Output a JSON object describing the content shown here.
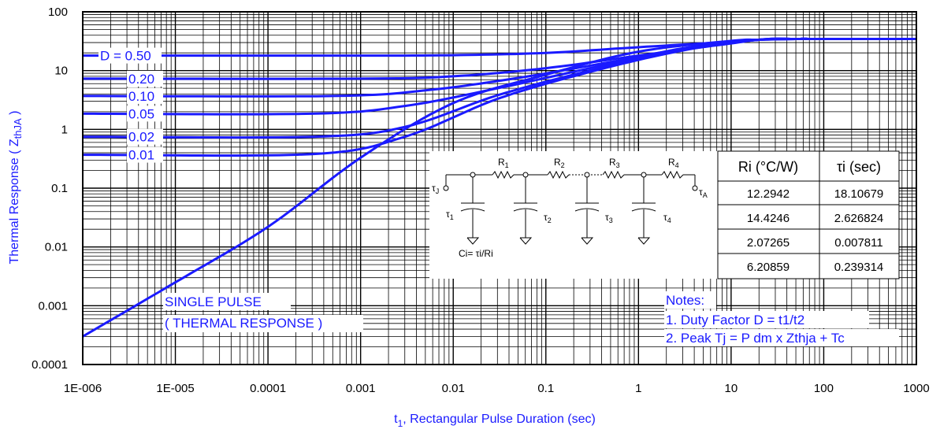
{
  "chart_data": {
    "type": "line",
    "xlabel_prefix": "t",
    "xlabel_sub": "1",
    "xlabel": ", Rectangular Pulse Duration (sec)",
    "ylabel": "Thermal Response ( Z",
    "ylabel_sub": "thJA",
    "ylabel_suffix": " )",
    "x_scale": "log",
    "y_scale": "log",
    "xlim": [
      1e-06,
      1000
    ],
    "ylim": [
      0.0001,
      100
    ],
    "x_ticks": [
      "1E-006",
      "1E-005",
      "0.0001",
      "0.001",
      "0.01",
      "0.1",
      "1",
      "10",
      "100",
      "1000"
    ],
    "y_ticks": [
      "100",
      "10",
      "1",
      "0.1",
      "0.01",
      "0.001",
      "0.0001"
    ],
    "grid": true,
    "line_color": "#1a1aff",
    "series": [
      {
        "name": "D = 0.50",
        "label": "D = 0.50",
        "x": [
          1e-06,
          0.001,
          0.01,
          0.1,
          1,
          10,
          20,
          50,
          100,
          1000
        ],
        "y": [
          18.0,
          18.0,
          18.3,
          20.0,
          25.0,
          31.0,
          33.5,
          34.5,
          34.5,
          34.5
        ]
      },
      {
        "name": "D = 0.20",
        "label": "0.20",
        "x": [
          1e-06,
          0.001,
          0.01,
          0.1,
          1,
          10,
          20,
          50,
          100,
          1000
        ],
        "y": [
          7.3,
          7.3,
          8.0,
          11.0,
          18.0,
          29.0,
          33.5,
          34.5,
          34.5,
          34.5
        ]
      },
      {
        "name": "D = 0.10",
        "label": "0.10",
        "x": [
          1e-06,
          0.0005,
          0.005,
          0.05,
          0.5,
          5,
          20,
          50,
          100,
          1000
        ],
        "y": [
          3.7,
          3.7,
          4.6,
          7.5,
          14.0,
          27.0,
          33.5,
          34.5,
          34.5,
          34.5
        ]
      },
      {
        "name": "D = 0.05",
        "label": "0.05",
        "x": [
          1e-06,
          0.0003,
          0.003,
          0.03,
          0.3,
          3,
          20,
          50,
          100,
          1000
        ],
        "y": [
          1.85,
          1.85,
          2.5,
          5.0,
          11.0,
          24.0,
          33.5,
          34.5,
          34.5,
          34.5
        ]
      },
      {
        "name": "D = 0.02",
        "label": "0.02",
        "x": [
          1e-06,
          0.0003,
          0.003,
          0.03,
          0.3,
          3,
          20,
          50,
          100,
          1000
        ],
        "y": [
          0.75,
          0.75,
          1.1,
          3.8,
          10.0,
          23.0,
          33.5,
          34.5,
          34.5,
          34.5
        ]
      },
      {
        "name": "D = 0.01",
        "label": "0.01",
        "x": [
          1e-06,
          0.0003,
          0.003,
          0.03,
          0.3,
          3,
          20,
          50,
          100,
          1000
        ],
        "y": [
          0.37,
          0.38,
          0.75,
          3.3,
          9.5,
          22.0,
          33.5,
          34.5,
          34.5,
          34.5
        ]
      },
      {
        "name": "SINGLE PULSE",
        "label": "",
        "x": [
          1e-06,
          1e-05,
          0.0001,
          0.001,
          0.01,
          0.1,
          1,
          10,
          20,
          50,
          100,
          1000
        ],
        "y": [
          0.0003,
          0.0025,
          0.022,
          0.33,
          2.8,
          8.5,
          21.0,
          32.0,
          33.5,
          34.5,
          34.5,
          34.5
        ]
      }
    ],
    "annotations": {
      "single_pulse_line1": "SINGLE PULSE",
      "single_pulse_line2": "( THERMAL RESPONSE )",
      "notes_title": "Notes:",
      "note1": "1. Duty Factor D = t1/t2",
      "note2": "2. Peak Tj = P dm x Zthja + Tc"
    },
    "table": {
      "headers": [
        "Ri (°C/W)",
        "τi (sec)"
      ],
      "rows": [
        [
          "12.2942",
          "18.10679"
        ],
        [
          "14.4246",
          "2.626824"
        ],
        [
          "2.07265",
          "0.007811"
        ],
        [
          "6.20859",
          "0.239314"
        ]
      ]
    },
    "circuit": {
      "resistors": [
        "R",
        "R",
        "R",
        "R"
      ],
      "resistor_subs": [
        "1",
        "2",
        "3",
        "4"
      ],
      "taus": [
        "τ",
        "τ",
        "τ",
        "τ"
      ],
      "tau_subs": [
        "1",
        "2",
        "3",
        "4"
      ],
      "node_j": "τ",
      "node_j_sub": "J",
      "node_a": "τ",
      "node_a_sub": "A",
      "formula": "Ci= τi/Ri"
    }
  }
}
